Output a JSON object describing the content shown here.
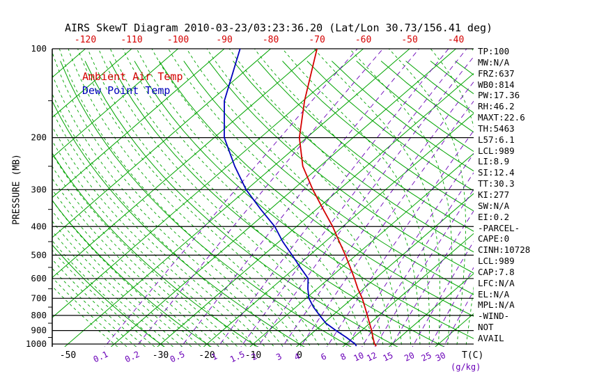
{
  "title": "AIRS SkewT Diagram 2010-03-23/03:23:36.20 (Lat/Lon 30.73/156.41 deg)",
  "legend": {
    "temp": "Ambient Air Temp",
    "dewpoint": "Dew Point Temp"
  },
  "axes": {
    "pressure_label": "PRESSURE (MB)",
    "pressure_ticks": [
      100,
      200,
      300,
      400,
      500,
      600,
      700,
      800,
      900,
      1000
    ],
    "top_temp_ticks": [
      -120,
      -110,
      -100,
      -90,
      -80,
      -70,
      -60,
      -50,
      -40
    ],
    "bottom_temp_ticks": [
      -50,
      -30,
      -20,
      -10,
      0
    ],
    "mixing_ratio_labels": [
      0.1,
      0.2,
      0.5,
      1,
      1.5,
      2,
      3,
      4,
      6,
      8,
      10,
      12,
      15,
      20,
      25,
      30
    ],
    "temp_unit": "T(C)",
    "mixing_unit": "(g/kg)"
  },
  "stats": [
    "TP:100",
    "MW:N/A",
    "FRZ:637",
    "WB0:814",
    "PW:17.36",
    "RH:46.2",
    "MAXT:22.6",
    "TH:5463",
    "L57:6.1",
    "LCL:989",
    "LI:8.9",
    "SI:12.4",
    "TT:30.3",
    "KI:277",
    "SW:N/A",
    "EI:0.2",
    "-PARCEL-",
    "CAPE:0",
    "CINH:10728",
    "LCL:989",
    "CAP:7.8",
    "LFC:N/A",
    "EL:N/A",
    "MPL:N/A",
    "-WIND-",
    "NOT",
    "AVAIL"
  ],
  "colors": {
    "isoline_green": "#00a400",
    "mixing_purple": "#6a00b8",
    "temp_red": "#d40000",
    "dew_blue": "#0000bb",
    "axis_black": "#000000"
  },
  "chart_data": {
    "type": "line",
    "title": "AIRS SkewT Diagram 2010-03-23/03:23:36.20 (Lat/Lon 30.73/156.41 deg)",
    "xlabel": "T(C)",
    "ylabel": "PRESSURE (MB)",
    "y_scale": "log",
    "y_range_mb": [
      100,
      1050
    ],
    "x_top_ticks_c": [
      -120,
      -110,
      -100,
      -90,
      -80,
      -70,
      -60,
      -50,
      -40
    ],
    "x_bottom_ticks_c": [
      -50,
      -30,
      -20,
      -10,
      0
    ],
    "series": [
      {
        "name": "Ambient Air Temp",
        "color_key": "temp_red",
        "points": [
          [
            1016,
            17.1
          ],
          [
            1000,
            16.2
          ],
          [
            950,
            14.2
          ],
          [
            900,
            12.2
          ],
          [
            850,
            9.9
          ],
          [
            800,
            7.5
          ],
          [
            750,
            4.9
          ],
          [
            700,
            2.1
          ],
          [
            650,
            -1.2
          ],
          [
            600,
            -4.5
          ],
          [
            550,
            -8.2
          ],
          [
            500,
            -12.3
          ],
          [
            450,
            -17.0
          ],
          [
            400,
            -22.2
          ],
          [
            350,
            -28.5
          ],
          [
            300,
            -35.7
          ],
          [
            250,
            -43.7
          ],
          [
            200,
            -51.6
          ],
          [
            150,
            -59.7
          ],
          [
            100,
            -70.0
          ]
        ]
      },
      {
        "name": "Dew Point Temp",
        "color_key": "dew_blue",
        "points": [
          [
            1016,
            12.8
          ],
          [
            1000,
            12.0
          ],
          [
            950,
            8.5
          ],
          [
            900,
            4.5
          ],
          [
            850,
            0.5
          ],
          [
            800,
            -2.8
          ],
          [
            750,
            -6.2
          ],
          [
            700,
            -9.4
          ],
          [
            650,
            -12.0
          ],
          [
            600,
            -14.5
          ],
          [
            550,
            -19.0
          ],
          [
            500,
            -23.8
          ],
          [
            450,
            -29.2
          ],
          [
            400,
            -34.7
          ],
          [
            350,
            -42.0
          ],
          [
            300,
            -50.1
          ],
          [
            250,
            -58.4
          ],
          [
            200,
            -67.8
          ],
          [
            150,
            -77.0
          ],
          [
            100,
            -86.6
          ]
        ]
      }
    ],
    "reference_lines": {
      "isotherms_c": [
        -120,
        -110,
        -100,
        -90,
        -80,
        -70,
        -60,
        -50,
        -40,
        -30,
        -20,
        -10,
        0,
        10,
        20,
        30,
        40
      ],
      "dry_adiabats_c": {
        "start": -30,
        "end": 180,
        "step": 10
      },
      "moist_adiabats_c": {
        "start": -40,
        "end": 38,
        "step": 2
      },
      "mixing_ratio_gkg": [
        0.1,
        0.2,
        0.5,
        1,
        1.5,
        2,
        3,
        4,
        6,
        8,
        10,
        12,
        15,
        20,
        25,
        30
      ]
    }
  }
}
